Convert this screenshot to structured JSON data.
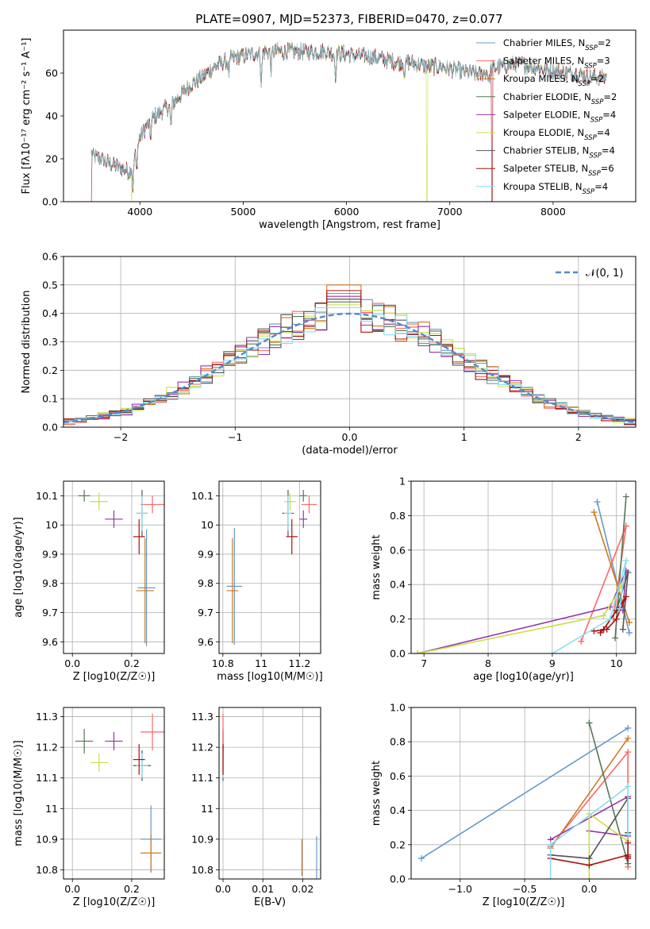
{
  "title": "PLATE=0907, MJD=52373, FIBERID=0470, z=0.077",
  "chart_data": [
    {
      "id": "spectrum",
      "type": "line",
      "title": "PLATE=0907, MJD=52373, FIBERID=0470, z=0.077",
      "xlabel": "wavelength [Angstrom, rest frame]",
      "ylabel": "Flux [fλ10⁻¹⁷ erg cm⁻² s⁻¹ A⁻¹]",
      "xlim": [
        3260,
        8800
      ],
      "ylim": [
        0,
        80
      ],
      "xticks": [
        4000,
        5000,
        6000,
        7000,
        8000
      ],
      "yticks": [
        0,
        20,
        40,
        60
      ],
      "grid": false,
      "legend_position": "top-right",
      "data_range": [
        3530,
        8520
      ],
      "approx_continuum": [
        [
          3530,
          22
        ],
        [
          3700,
          18
        ],
        [
          3800,
          16
        ],
        [
          3900,
          14
        ],
        [
          4000,
          30
        ],
        [
          4100,
          38
        ],
        [
          4200,
          42
        ],
        [
          4300,
          45
        ],
        [
          4400,
          50
        ],
        [
          4500,
          55
        ],
        [
          4600,
          58
        ],
        [
          4700,
          62
        ],
        [
          4800,
          65
        ],
        [
          4900,
          67
        ],
        [
          5000,
          68
        ],
        [
          5100,
          69
        ],
        [
          5200,
          70
        ],
        [
          5300,
          70
        ],
        [
          5400,
          70
        ],
        [
          5500,
          70
        ],
        [
          5600,
          70
        ],
        [
          5700,
          70
        ],
        [
          5800,
          70
        ],
        [
          5900,
          69
        ],
        [
          6000,
          69
        ],
        [
          6100,
          68
        ],
        [
          6200,
          68
        ],
        [
          6300,
          67
        ],
        [
          6400,
          66
        ],
        [
          6500,
          65
        ],
        [
          6600,
          65
        ],
        [
          6700,
          64
        ],
        [
          6800,
          63
        ],
        [
          6900,
          63
        ],
        [
          7000,
          62
        ],
        [
          7100,
          61
        ],
        [
          7200,
          60
        ],
        [
          7300,
          59
        ],
        [
          7400,
          62
        ],
        [
          7500,
          63
        ],
        [
          7600,
          64
        ],
        [
          7700,
          64
        ],
        [
          7800,
          63
        ],
        [
          7900,
          62
        ],
        [
          8000,
          61
        ],
        [
          8100,
          60
        ],
        [
          8200,
          60
        ],
        [
          8300,
          59
        ],
        [
          8400,
          58
        ],
        [
          8520,
          58
        ]
      ],
      "absorption_features": [
        [
          3933,
          12
        ],
        [
          3968,
          10
        ],
        [
          4102,
          8
        ],
        [
          4300,
          10
        ],
        [
          4861,
          6
        ],
        [
          5175,
          14
        ],
        [
          5270,
          8
        ],
        [
          5893,
          10
        ],
        [
          6563,
          5
        ],
        [
          7380,
          6
        ]
      ],
      "series": [
        {
          "name": "Chabrier MILES",
          "nssp": "2",
          "color": "#6699cc"
        },
        {
          "name": "Salpeter MILES",
          "nssp": "3",
          "color": "#ff6666"
        },
        {
          "name": "Kroupa MILES",
          "nssp": "2",
          "color": "#cc7a22"
        },
        {
          "name": "Chabrier ELODIE",
          "nssp": "2",
          "color": "#557755"
        },
        {
          "name": "Salpeter ELODIE",
          "nssp": "4",
          "color": "#9933aa"
        },
        {
          "name": "Kroupa ELODIE",
          "nssp": "4",
          "color": "#ccdd44"
        },
        {
          "name": "Chabrier STELIB",
          "nssp": "4",
          "color": "#555555"
        },
        {
          "name": "Salpeter STELIB",
          "nssp": "6",
          "color": "#aa1111"
        },
        {
          "name": "Kroupa STELIB",
          "nssp": "4",
          "color": "#88ddee"
        }
      ],
      "drops": [
        {
          "series": 5,
          "x": 3920,
          "to": 0
        },
        {
          "series": 5,
          "x": 6780,
          "to": 0
        },
        {
          "series": 7,
          "x": 3530,
          "to": 0
        },
        {
          "series": 7,
          "x": 7410,
          "to": 0
        }
      ]
    },
    {
      "id": "residuals",
      "type": "line",
      "xlabel": "(data-model)/error",
      "ylabel": "Normed distribution",
      "xlim": [
        -2.5,
        2.5
      ],
      "ylim": [
        0,
        0.6
      ],
      "xticks": [
        -2,
        -1,
        0,
        1,
        2
      ],
      "yticks": [
        0.0,
        0.1,
        0.2,
        0.3,
        0.4,
        0.5,
        0.6
      ],
      "grid": true,
      "legend_position": "top-right",
      "reference_curve": {
        "name": "𝒩(0, 1)",
        "color": "#5588cc",
        "mean": 0,
        "sigma": 1
      },
      "bin_width": 0.1,
      "histogram_peak_values": [
        0.47,
        0.45,
        0.5,
        0.44,
        0.46,
        0.43,
        0.45,
        0.48,
        0.42,
        0.5,
        0.57,
        0.51,
        0.44,
        0.47,
        0.43,
        0.45,
        0.42,
        0.4
      ]
    },
    {
      "id": "age-vs-Z",
      "type": "scatter",
      "xlabel": "Z [log10(Z/Z☉)]",
      "ylabel": "age [log10(age/yr)]",
      "xlim": [
        -0.03,
        0.31
      ],
      "ylim": [
        9.56,
        10.15
      ],
      "xticks": [
        0.0,
        0.2
      ],
      "yticks": [
        9.6,
        9.7,
        9.8,
        9.9,
        10.0,
        10.1
      ],
      "grid": true,
      "points": [
        {
          "x": 0.04,
          "y": 10.1,
          "xerr": 0.02,
          "yerr": 0.02,
          "series": 3
        },
        {
          "x": 0.09,
          "y": 10.08,
          "xerr": 0.03,
          "yerr": 0.03,
          "series": 5
        },
        {
          "x": 0.14,
          "y": 10.02,
          "xerr": 0.03,
          "yerr": 0.03,
          "series": 4
        },
        {
          "x": 0.27,
          "y": 10.07,
          "xerr": 0.04,
          "yerr": 0.03,
          "series": 1
        },
        {
          "x": 0.235,
          "y": 10.04,
          "xerr": 0.02,
          "yerr": 0.08,
          "series": 6
        },
        {
          "x": 0.235,
          "y": 10.04,
          "xerr": 0.02,
          "yerr": 0.06,
          "series": 8
        },
        {
          "x": 0.225,
          "y": 9.96,
          "xerr": 0.02,
          "yerr": 0.06,
          "series": 7
        },
        {
          "x": 0.25,
          "y": 9.785,
          "xerr": 0.03,
          "yerr": 0.2,
          "series": 0
        },
        {
          "x": 0.245,
          "y": 9.775,
          "xerr": 0.03,
          "yerr": 0.18,
          "series": 2
        }
      ]
    },
    {
      "id": "age-vs-mass",
      "type": "scatter",
      "xlabel": "mass [log10(M/M☉)]",
      "ylabel": "",
      "xlim": [
        10.78,
        11.31
      ],
      "ylim": [
        9.56,
        10.15
      ],
      "xticks": [
        10.8,
        11.0,
        11.2
      ],
      "yticks": [
        9.6,
        9.7,
        9.8,
        9.9,
        10.0,
        10.1
      ],
      "grid": true,
      "points": [
        {
          "x": 11.22,
          "y": 10.1,
          "xerr": 0.02,
          "yerr": 0.02,
          "series": 3
        },
        {
          "x": 11.15,
          "y": 10.08,
          "xerr": 0.03,
          "yerr": 0.03,
          "series": 5
        },
        {
          "x": 11.22,
          "y": 10.02,
          "xerr": 0.02,
          "yerr": 0.03,
          "series": 4
        },
        {
          "x": 11.25,
          "y": 10.07,
          "xerr": 0.04,
          "yerr": 0.03,
          "series": 1
        },
        {
          "x": 11.14,
          "y": 10.04,
          "xerr": 0.03,
          "yerr": 0.08,
          "series": 6
        },
        {
          "x": 11.14,
          "y": 10.04,
          "xerr": 0.02,
          "yerr": 0.06,
          "series": 8
        },
        {
          "x": 11.16,
          "y": 9.96,
          "xerr": 0.03,
          "yerr": 0.06,
          "series": 7
        },
        {
          "x": 10.86,
          "y": 9.79,
          "xerr": 0.04,
          "yerr": 0.2,
          "series": 0
        },
        {
          "x": 10.85,
          "y": 9.775,
          "xerr": 0.03,
          "yerr": 0.18,
          "series": 2
        }
      ]
    },
    {
      "id": "weight-vs-age",
      "type": "line",
      "xlabel": "age [log10(age/yr)]",
      "ylabel": "mass weight",
      "xlim": [
        6.8,
        10.3
      ],
      "ylim": [
        0.0,
        1.0
      ],
      "xticks": [
        7,
        8,
        9,
        10
      ],
      "yticks": [
        0.0,
        0.2,
        0.4,
        0.6,
        0.8,
        1.0
      ],
      "grid": true,
      "series": [
        {
          "series": 0,
          "points": [
            [
              9.7,
              0.88
            ],
            [
              10.2,
              0.12
            ]
          ]
        },
        {
          "series": 1,
          "points": [
            [
              9.45,
              0.07
            ],
            [
              10.15,
              0.74
            ],
            [
              9.95,
              0.2
            ]
          ]
        },
        {
          "series": 2,
          "points": [
            [
              9.65,
              0.82
            ],
            [
              10.2,
              0.18
            ]
          ]
        },
        {
          "series": 3,
          "points": [
            [
              10.15,
              0.91
            ],
            [
              9.98,
              0.09
            ]
          ]
        },
        {
          "series": 4,
          "points": [
            [
              6.9,
              0.0
            ],
            [
              9.9,
              0.27
            ],
            [
              10.15,
              0.48
            ],
            [
              10.1,
              0.25
            ]
          ]
        },
        {
          "series": 5,
          "points": [
            [
              6.9,
              0.0
            ],
            [
              9.8,
              0.22
            ],
            [
              10.1,
              0.4
            ],
            [
              10.05,
              0.38
            ]
          ]
        },
        {
          "series": 6,
          "points": [
            [
              9.8,
              0.14
            ],
            [
              10.0,
              0.25
            ],
            [
              10.18,
              0.47
            ],
            [
              10.1,
              0.14
            ]
          ]
        },
        {
          "series": 7,
          "points": [
            [
              9.65,
              0.13
            ],
            [
              9.85,
              0.14
            ],
            [
              10.0,
              0.2
            ],
            [
              10.15,
              0.33
            ],
            [
              9.8,
              0.14
            ],
            [
              9.75,
              0.12
            ]
          ]
        },
        {
          "series": 8,
          "points": [
            [
              9.0,
              0.0
            ],
            [
              9.9,
              0.2
            ],
            [
              10.15,
              0.54
            ],
            [
              10.05,
              0.26
            ]
          ]
        }
      ]
    },
    {
      "id": "mass-vs-Z",
      "type": "scatter",
      "xlabel": "Z [log10(Z/Z☉)]",
      "ylabel": "mass [log10(M/M☉)]",
      "xlim": [
        -0.03,
        0.31
      ],
      "ylim": [
        10.77,
        11.33
      ],
      "xticks": [
        0.0,
        0.2
      ],
      "yticks": [
        10.8,
        10.9,
        11.0,
        11.1,
        11.2,
        11.3
      ],
      "grid": true,
      "points": [
        {
          "x": 0.04,
          "y": 11.22,
          "xerr": 0.03,
          "yerr": 0.04,
          "series": 3
        },
        {
          "x": 0.09,
          "y": 11.15,
          "xerr": 0.03,
          "yerr": 0.03,
          "series": 5
        },
        {
          "x": 0.14,
          "y": 11.22,
          "xerr": 0.03,
          "yerr": 0.03,
          "series": 4
        },
        {
          "x": 0.27,
          "y": 11.25,
          "xerr": 0.04,
          "yerr": 0.06,
          "series": 1
        },
        {
          "x": 0.235,
          "y": 11.14,
          "xerr": 0.03,
          "yerr": 0.05,
          "series": 6
        },
        {
          "x": 0.235,
          "y": 11.14,
          "xerr": 0.02,
          "yerr": 0.04,
          "series": 8
        },
        {
          "x": 0.225,
          "y": 11.16,
          "xerr": 0.02,
          "yerr": 0.05,
          "series": 7
        },
        {
          "x": 0.265,
          "y": 10.9,
          "xerr": 0.035,
          "yerr": 0.11,
          "series": 0
        },
        {
          "x": 0.265,
          "y": 10.855,
          "xerr": 0.035,
          "yerr": 0.06,
          "series": 2
        }
      ]
    },
    {
      "id": "mass-vs-ebv",
      "type": "scatter",
      "xlabel": "E(B-V)",
      "ylabel": "",
      "xlim": [
        -0.001,
        0.0245
      ],
      "ylim": [
        10.77,
        11.33
      ],
      "xticks": [
        0.0,
        0.01,
        0.02
      ],
      "yticks": [
        10.8,
        10.9,
        11.0,
        11.1,
        11.2,
        11.3
      ],
      "grid": true,
      "points": [
        {
          "x": 0.0,
          "y": 11.22,
          "xerr": 0.0,
          "yerr": 0.04,
          "series": 3
        },
        {
          "x": 0.0,
          "y": 11.15,
          "xerr": 0.0,
          "yerr": 0.03,
          "series": 5
        },
        {
          "x": 0.0,
          "y": 11.22,
          "xerr": 0.0,
          "yerr": 0.03,
          "series": 4
        },
        {
          "x": 0.0,
          "y": 11.25,
          "xerr": 0.0,
          "yerr": 0.06,
          "series": 1
        },
        {
          "x": 0.0,
          "y": 11.14,
          "xerr": 0.0,
          "yerr": 0.05,
          "series": 6
        },
        {
          "x": 0.0,
          "y": 11.14,
          "xerr": 0.0,
          "yerr": 0.04,
          "series": 8
        },
        {
          "x": 0.0,
          "y": 11.16,
          "xerr": 0.0,
          "yerr": 0.05,
          "series": 7
        },
        {
          "x": 0.0235,
          "y": 10.84,
          "xerr": 0.0,
          "yerr": 0.07,
          "series": 0
        },
        {
          "x": 0.0198,
          "y": 10.84,
          "xerr": 0.0,
          "yerr": 0.06,
          "series": 2
        }
      ]
    },
    {
      "id": "weight-vs-Z",
      "type": "line",
      "xlabel": "Z [log10(Z/Z☉)]",
      "ylabel": "mass weight",
      "xlim": [
        -1.38,
        0.36
      ],
      "ylim": [
        0.0,
        1.0
      ],
      "xticks": [
        -1.0,
        -0.5,
        0.0
      ],
      "yticks": [
        0.0,
        0.2,
        0.4,
        0.6,
        0.8,
        1.0
      ],
      "grid": true,
      "series": [
        {
          "series": 0,
          "points": [
            [
              -1.3,
              0.12
            ],
            [
              0.3,
              0.88
            ]
          ]
        },
        {
          "series": 1,
          "points": [
            [
              -0.3,
              0.19
            ],
            [
              0.3,
              0.74
            ],
            [
              0.3,
              0.07
            ]
          ]
        },
        {
          "series": 2,
          "points": [
            [
              -0.3,
              0.18
            ],
            [
              0.3,
              0.82
            ]
          ]
        },
        {
          "series": 3,
          "points": [
            [
              0.0,
              0.91
            ],
            [
              0.3,
              0.09
            ]
          ]
        },
        {
          "series": 4,
          "points": [
            [
              -0.3,
              0.23
            ],
            [
              0.3,
              0.48
            ],
            [
              0.3,
              0.25
            ],
            [
              0.0,
              0.28
            ]
          ]
        },
        {
          "series": 5,
          "points": [
            [
              0.0,
              0.0
            ],
            [
              0.0,
              0.38
            ],
            [
              0.3,
              0.22
            ]
          ]
        },
        {
          "series": 6,
          "points": [
            [
              -0.3,
              0.14
            ],
            [
              0.0,
              0.12
            ],
            [
              0.3,
              0.47
            ],
            [
              0.3,
              0.27
            ]
          ]
        },
        {
          "series": 7,
          "points": [
            [
              -0.3,
              0.12
            ],
            [
              0.0,
              0.08
            ],
            [
              0.3,
              0.14
            ],
            [
              0.3,
              0.21
            ],
            [
              0.3,
              0.13
            ],
            [
              0.3,
              0.12
            ]
          ]
        },
        {
          "series": 8,
          "points": [
            [
              -0.3,
              0.0
            ],
            [
              -0.3,
              0.2
            ],
            [
              0.3,
              0.54
            ],
            [
              0.3,
              0.26
            ]
          ]
        }
      ]
    }
  ]
}
